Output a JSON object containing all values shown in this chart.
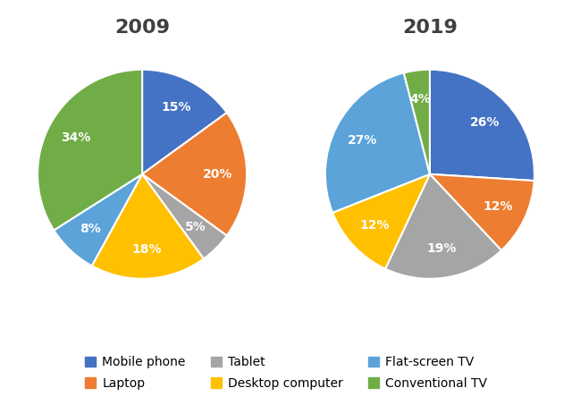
{
  "title_2009": "2009",
  "title_2019": "2019",
  "labels": [
    "Mobile phone",
    "Laptop",
    "Tablet",
    "Desktop computer",
    "Flat-screen TV",
    "Conventional TV"
  ],
  "legend_order": [
    "Mobile phone",
    "Laptop",
    "Tablet",
    "Desktop computer",
    "Flat-screen TV",
    "Conventional TV"
  ],
  "colors": {
    "Mobile phone": "#4472C4",
    "Laptop": "#ED7D31",
    "Tablet": "#A5A5A5",
    "Desktop computer": "#FFC000",
    "Flat-screen TV": "#5BA3D9",
    "Conventional TV": "#70AD47"
  },
  "data_2009": {
    "Mobile phone": 15,
    "Laptop": 20,
    "Tablet": 5,
    "Desktop computer": 18,
    "Flat-screen TV": 8,
    "Conventional TV": 34
  },
  "data_2019": {
    "Mobile phone": 26,
    "Laptop": 12,
    "Tablet": 19,
    "Desktop computer": 12,
    "Flat-screen TV": 27,
    "Conventional TV": 4
  },
  "title_fontsize": 16,
  "label_fontsize": 10,
  "legend_fontsize": 10,
  "title_color": "#404040",
  "bg_color": "#ffffff"
}
